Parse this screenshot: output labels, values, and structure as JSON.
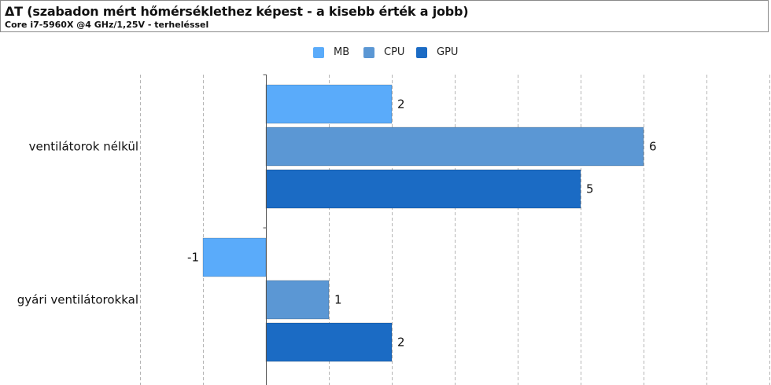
{
  "chart_data": {
    "type": "bar",
    "orientation": "horizontal",
    "title": "ΔT (szabadon mért hőmérséklethez képest - a kisebb érték a jobb)",
    "subtitle": "Core i7-5960X @4 GHz/1,25V - terheléssel",
    "categories": [
      "ventilátorok nélkül",
      "gyári ventilátorokkal"
    ],
    "series": [
      {
        "name": "MB",
        "values": [
          2,
          -1
        ],
        "color": "#5aabfa"
      },
      {
        "name": "CPU",
        "values": [
          6,
          1
        ],
        "color": "#5b97d4"
      },
      {
        "name": "GPU",
        "values": [
          5,
          2
        ],
        "color": "#1b6bc4"
      }
    ],
    "xlim": [
      -2,
      8
    ],
    "grid": true,
    "legend_position": "top"
  }
}
